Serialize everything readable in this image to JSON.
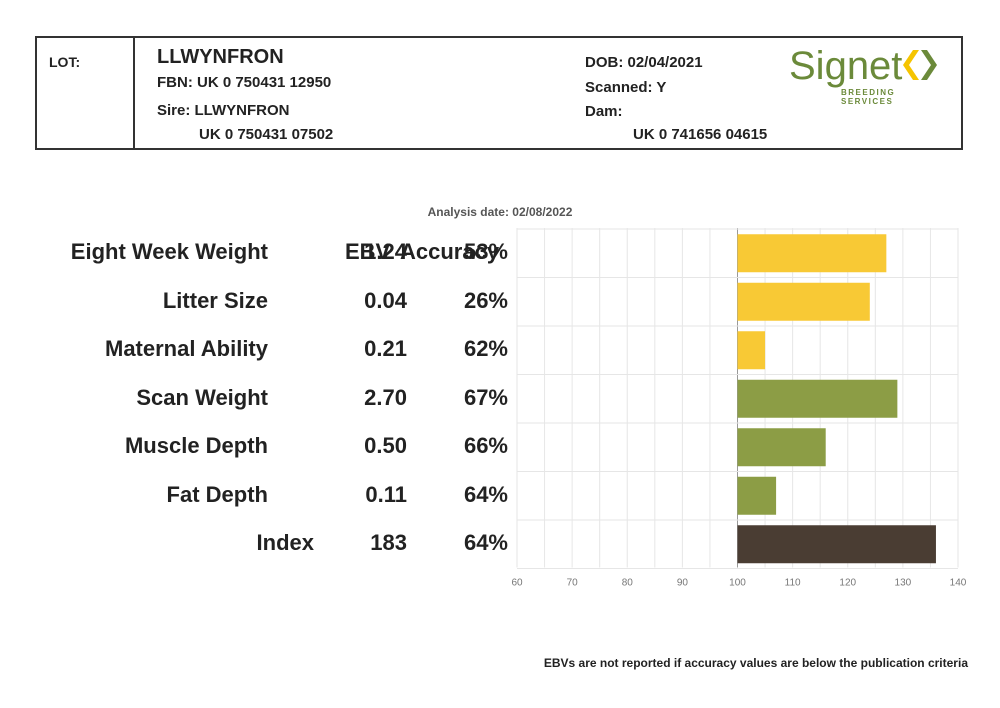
{
  "header": {
    "lot_label": "LOT:",
    "name": "LLWYNFRON",
    "fbn": "FBN: UK 0 750431 12950",
    "sire": "Sire: LLWYNFRON",
    "sire_id": "UK 0 750431 07502",
    "dob": "DOB: 02/04/2021",
    "scanned": "Scanned: Y",
    "dam": "Dam:",
    "dam_id": "UK 0 741656 04615"
  },
  "logo": {
    "word": "Signet",
    "sub": "BREEDING SERVICES",
    "colors": {
      "green": "#6b8a3a",
      "yellow": "#f5c400"
    }
  },
  "analysis_date": "Analysis date: 02/08/2022",
  "columns": {
    "ebv": "EBV",
    "accuracy": "Accuracy"
  },
  "footnote": "EBVs are not reported if accuracy values are below the publication criteria",
  "chart_data": {
    "type": "bar",
    "orientation": "horizontal",
    "baseline": 100,
    "xlim": [
      60,
      140
    ],
    "x_ticks": [
      60,
      70,
      80,
      90,
      100,
      110,
      120,
      130,
      140
    ],
    "grid": true,
    "rows": [
      {
        "label": "Eight Week Weight",
        "ebv": "1.24",
        "accuracy": "53%",
        "value": 127,
        "color": "#f8c935"
      },
      {
        "label": "Litter Size",
        "ebv": "0.04",
        "accuracy": "26%",
        "value": 124,
        "color": "#f8c935"
      },
      {
        "label": "Maternal Ability",
        "ebv": "0.21",
        "accuracy": "62%",
        "value": 105,
        "color": "#f8c935"
      },
      {
        "label": "Scan Weight",
        "ebv": "2.70",
        "accuracy": "67%",
        "value": 129,
        "color": "#8c9d45"
      },
      {
        "label": "Muscle Depth",
        "ebv": "0.50",
        "accuracy": "66%",
        "value": 116,
        "color": "#8c9d45"
      },
      {
        "label": "Fat Depth",
        "ebv": "0.11",
        "accuracy": "64%",
        "value": 107,
        "color": "#8c9d45"
      },
      {
        "label": "Index",
        "ebv": "183",
        "accuracy": "64%",
        "value": 136,
        "color": "#4a3d33"
      }
    ]
  }
}
